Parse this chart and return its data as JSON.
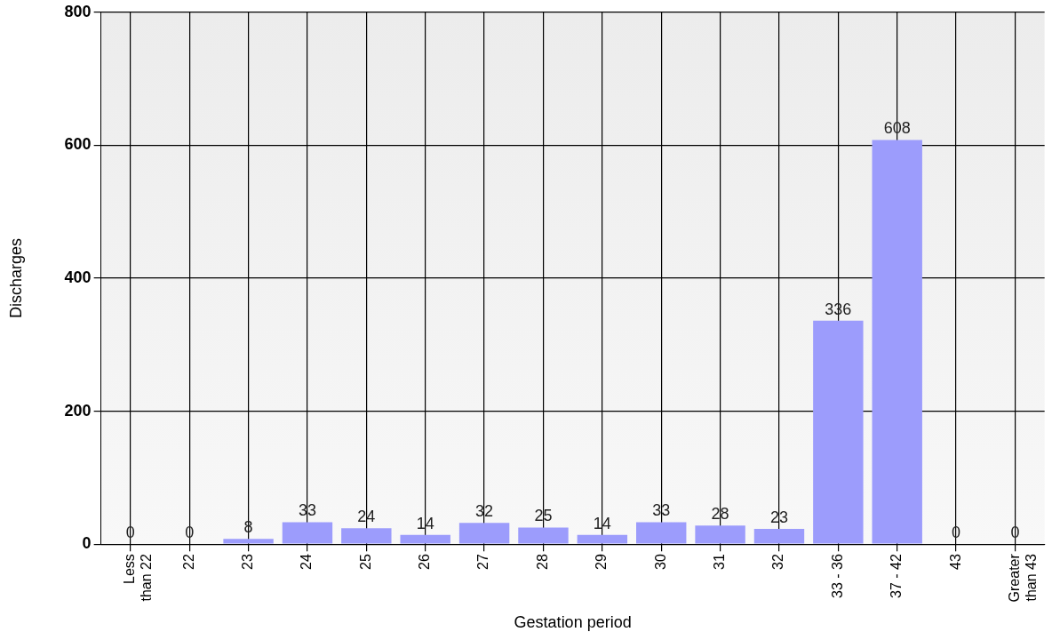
{
  "chart_data": {
    "type": "bar",
    "xlabel": "Gestation period",
    "ylabel": "Discharges",
    "categories": [
      "Less than 22",
      "22",
      "23",
      "24",
      "25",
      "26",
      "27",
      "28",
      "29",
      "30",
      "31",
      "32",
      "33 - 36",
      "37 - 42",
      "43",
      "Greater than 43"
    ],
    "values": [
      0,
      0,
      8,
      33,
      24,
      14,
      32,
      25,
      14,
      33,
      28,
      23,
      336,
      608,
      0,
      0
    ],
    "color": "#9c9cfc",
    "ylim": [
      0,
      800
    ],
    "yticks": [
      0,
      200,
      400,
      600,
      800
    ],
    "grid": true,
    "legend": false,
    "data_labels": true
  }
}
